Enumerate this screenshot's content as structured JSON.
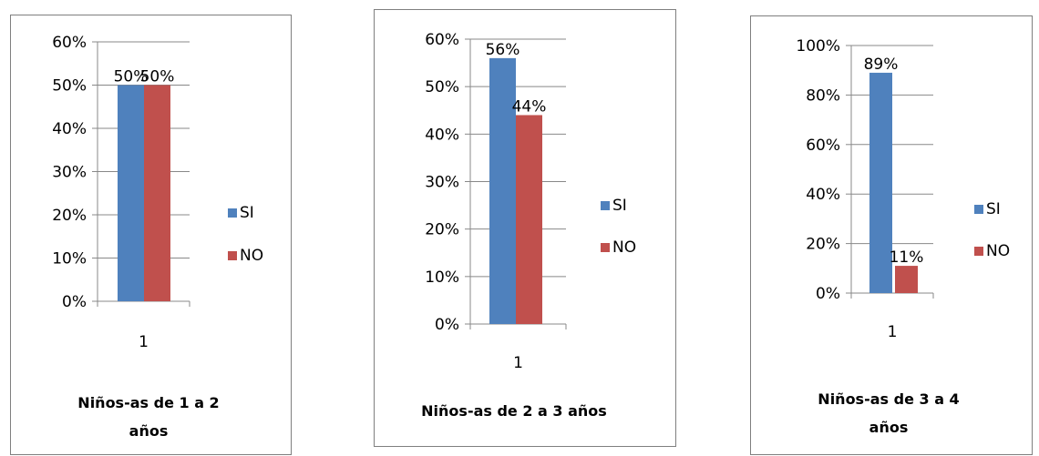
{
  "colors": {
    "si": "#4F81BD",
    "no": "#C0504D"
  },
  "chart_data": [
    {
      "type": "bar",
      "categories": [
        "1"
      ],
      "series": [
        {
          "name": "SI",
          "values": [
            50
          ]
        },
        {
          "name": "NO",
          "values": [
            50
          ]
        }
      ],
      "value_labels": [
        "50%",
        "50%"
      ],
      "yticks": [
        "0%",
        "10%",
        "20%",
        "30%",
        "40%",
        "50%",
        "60%"
      ],
      "ylim": [
        0,
        60
      ],
      "legend_position": "right",
      "grid": true,
      "title_lines": [
        "Niños-as de 1 a 2",
        "años"
      ]
    },
    {
      "type": "bar",
      "categories": [
        "1"
      ],
      "series": [
        {
          "name": "SI",
          "values": [
            56
          ]
        },
        {
          "name": "NO",
          "values": [
            44
          ]
        }
      ],
      "value_labels": [
        "56%",
        "44%"
      ],
      "yticks": [
        "0%",
        "10%",
        "20%",
        "30%",
        "40%",
        "50%",
        "60%"
      ],
      "ylim": [
        0,
        60
      ],
      "legend_position": "right",
      "grid": true,
      "title_lines": [
        "Niños-as de 2 a 3 años"
      ]
    },
    {
      "type": "bar",
      "categories": [
        "1"
      ],
      "series": [
        {
          "name": "SI",
          "values": [
            89
          ]
        },
        {
          "name": "NO",
          "values": [
            11
          ]
        }
      ],
      "value_labels": [
        "89%",
        "11%"
      ],
      "yticks": [
        "0%",
        "20%",
        "40%",
        "60%",
        "80%",
        "100%"
      ],
      "ylim": [
        0,
        100
      ],
      "legend_position": "right",
      "grid": true,
      "title_lines": [
        "Niños-as de 3 a 4",
        "años"
      ]
    }
  ]
}
